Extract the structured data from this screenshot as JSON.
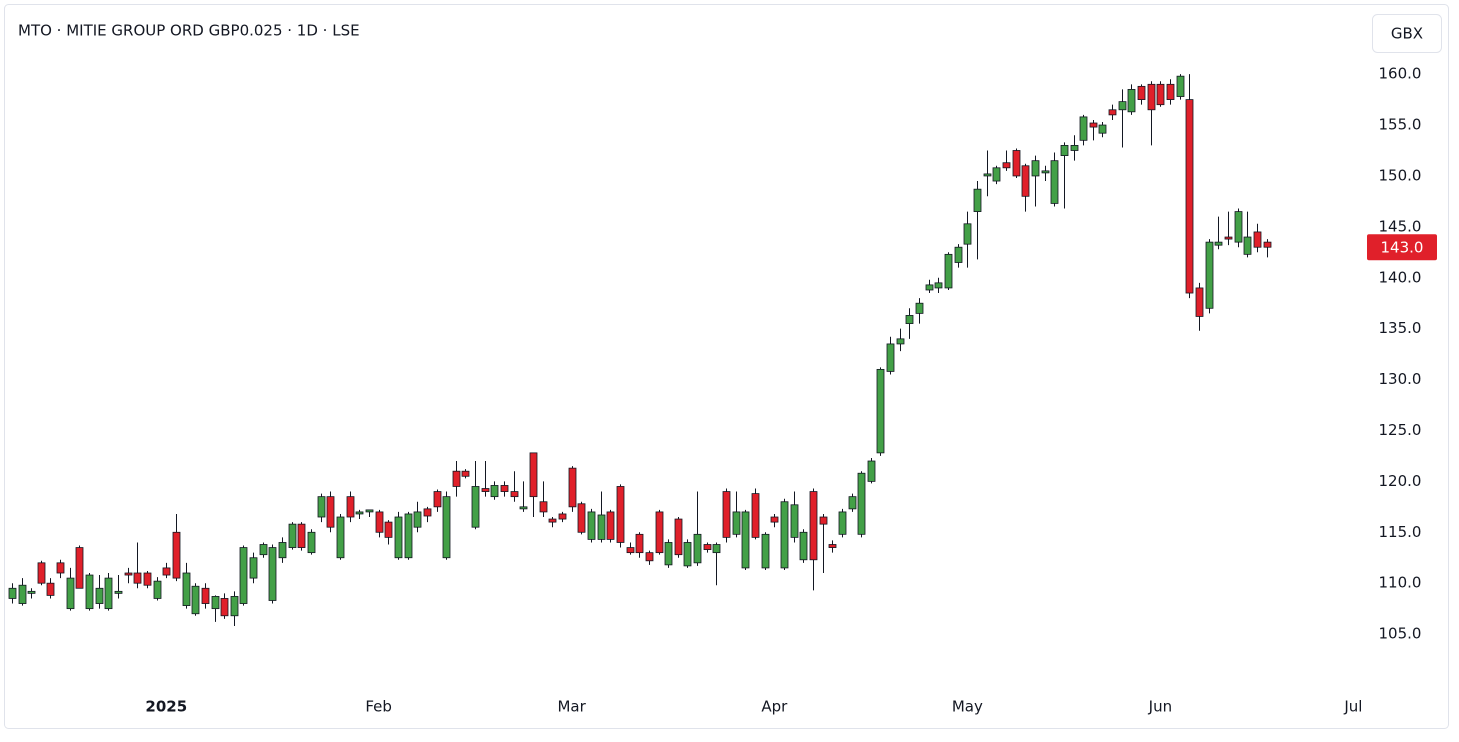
{
  "chart_data": {
    "type": "candlestick",
    "title": "MTO · MITIE GROUP ORD GBP0.025 · 1D · LSE",
    "currency": "GBX",
    "up_color": "#43a047",
    "down_color": "#e0202a",
    "wick_color": "#131722",
    "open": [
      108.5,
      108,
      109,
      112,
      110,
      112,
      107.5,
      113.5,
      107.5,
      108,
      107.5,
      109,
      111,
      111,
      111,
      108.5,
      111.5,
      115,
      107.8,
      107,
      109.5,
      107.5,
      108.5,
      106.8,
      108,
      110.5,
      112.8,
      108.3,
      112.5,
      113.5,
      115.8,
      113,
      116.5,
      118.5,
      112.5,
      118.5,
      116.8,
      117,
      117,
      116,
      112.5,
      112.5,
      115.5,
      117.3,
      119,
      112.5,
      121,
      121,
      115.5,
      119.3,
      118.5,
      119.6,
      119,
      117.3,
      122.8,
      118,
      116.3,
      116.8,
      121.3,
      117.8,
      114.3,
      114.3,
      117,
      119.5,
      113.5,
      114.8,
      113,
      117,
      111.8,
      116.3,
      111.7,
      112,
      113.8,
      113,
      119,
      114.8,
      111.5,
      118.8,
      111.5,
      116.5,
      111.5,
      114.5,
      112.3,
      119,
      116.5,
      113.8,
      114.8,
      117.3,
      114.8,
      120,
      122.8,
      130.8,
      133.5,
      135.5,
      136.5,
      138.8,
      139,
      139,
      141.5,
      143.3,
      146.5,
      150,
      149.5,
      151.3,
      152.5,
      151,
      150,
      150.3,
      147.3,
      152,
      152.5,
      153.5,
      155.2,
      154.2,
      156.5,
      156.5,
      156.3,
      158.8,
      159,
      159,
      159,
      157.8,
      157.5,
      139,
      137,
      143.2,
      144,
      143.5,
      142.3,
      144.5,
      143.5
    ],
    "high": [
      110,
      110.5,
      109.5,
      112.2,
      110.5,
      112.3,
      111.5,
      113.7,
      111,
      110.8,
      111,
      110.8,
      111.5,
      114,
      111.2,
      110.6,
      112,
      116.8,
      112,
      110,
      110,
      108.8,
      109,
      109.2,
      113.7,
      113,
      114,
      113.8,
      114.5,
      116,
      116,
      115.3,
      118.8,
      119,
      116.8,
      119,
      117.2,
      117.2,
      117.2,
      116.2,
      117,
      117,
      118,
      117.5,
      119.2,
      119,
      122,
      121.2,
      122,
      122,
      120,
      120,
      121,
      120,
      122.8,
      120,
      116.5,
      117,
      121.5,
      118,
      117.3,
      119,
      117.2,
      119.7,
      114,
      115,
      113.2,
      117.2,
      114.3,
      116.5,
      114.3,
      119,
      114,
      114,
      119.3,
      119,
      117.2,
      119.3,
      115,
      116.8,
      118.3,
      119,
      115.3,
      119.3,
      116.8,
      114.2,
      117.3,
      118.8,
      121,
      122.3,
      131.2,
      134.2,
      135,
      137,
      138,
      139.8,
      140,
      142.5,
      143.3,
      146.5,
      149.5,
      152.5,
      151,
      152.5,
      152.7,
      151.2,
      152,
      151,
      152.3,
      153.3,
      154,
      156,
      155.5,
      155.3,
      157,
      158.5,
      159,
      159,
      159.3,
      159.3,
      159.5,
      160,
      160,
      139.5,
      143.8,
      146,
      146.5,
      146.8,
      146.5,
      145.3,
      143.8
    ],
    "low": [
      108,
      107.8,
      108.5,
      109.8,
      108.5,
      110.5,
      107.3,
      109.5,
      107.3,
      107.5,
      107.3,
      108.5,
      110,
      109.5,
      109.5,
      108.3,
      110.5,
      110.2,
      107.5,
      106.8,
      107.5,
      106.2,
      106.5,
      105.8,
      107.8,
      110,
      112.5,
      108,
      112,
      113.3,
      113.2,
      112.8,
      116,
      115,
      112.3,
      116,
      116.3,
      116.5,
      114.5,
      113.8,
      112.3,
      112.3,
      115,
      116,
      117,
      112.3,
      118.5,
      120.3,
      115.3,
      118.5,
      118.2,
      118.5,
      118,
      117,
      116.5,
      116.5,
      115.5,
      116,
      117,
      114.8,
      114,
      114,
      114,
      113.5,
      112.8,
      112.5,
      111.8,
      112.8,
      111.5,
      112.5,
      111.5,
      111.7,
      113,
      109.8,
      114,
      114.5,
      111.3,
      114.3,
      111.3,
      115.5,
      111.3,
      114,
      112,
      109.3,
      111,
      113,
      114.5,
      117,
      114.5,
      119.8,
      122.5,
      130.5,
      132.8,
      134,
      135.5,
      138.5,
      138.5,
      138.8,
      141,
      141,
      141.8,
      148,
      149.2,
      150.5,
      149.8,
      146.5,
      147,
      149.5,
      147,
      146.8,
      151.5,
      153,
      153.5,
      153.8,
      155.5,
      152.8,
      156,
      157,
      153,
      156.8,
      157,
      157.5,
      138,
      134.8,
      136.5,
      142.8,
      143.2,
      143,
      142,
      142.5,
      142
    ],
    "close": [
      109.5,
      109.8,
      109.2,
      110,
      108.8,
      111,
      110.5,
      109.5,
      110.8,
      109.5,
      110.5,
      109.2,
      110.8,
      110,
      109.8,
      110.2,
      110.8,
      110.5,
      111,
      109.7,
      108,
      108.7,
      106.8,
      108.7,
      113.5,
      112.5,
      113.8,
      113.5,
      114,
      115.8,
      113.5,
      115,
      118.5,
      115.5,
      116.5,
      116.5,
      117,
      117.2,
      115,
      114.5,
      116.5,
      116.8,
      117,
      116.6,
      117.5,
      118.5,
      119.5,
      120.5,
      119.5,
      119,
      119.6,
      119,
      118.5,
      117.5,
      118.5,
      117,
      116,
      116.3,
      117.5,
      115,
      117,
      116.7,
      114.3,
      114,
      113,
      113,
      112.2,
      113,
      114,
      112.8,
      114,
      114.8,
      113.3,
      113.8,
      114.5,
      117,
      117,
      114.5,
      114.8,
      116,
      118,
      117.7,
      115,
      112.3,
      115.8,
      113.5,
      117,
      118.5,
      120.8,
      122,
      131,
      133.5,
      134,
      136.3,
      137.5,
      139.3,
      139.5,
      142.3,
      143,
      145.3,
      148.7,
      150.2,
      150.8,
      150.8,
      150,
      148,
      151.5,
      150.5,
      151.5,
      153,
      153,
      155.8,
      154.8,
      155,
      156,
      157.3,
      158.5,
      157.5,
      156.5,
      157,
      157.5,
      159.8,
      138.5,
      136.2,
      143.5,
      143.5,
      143.8,
      146.5,
      144,
      143,
      143
    ],
    "last_price": {
      "value": 143.0,
      "label": "143.0"
    },
    "xlim": [
      -0.4,
      140.2
    ],
    "xticks": [
      {
        "value": 16,
        "label": "2025"
      },
      {
        "value": 38,
        "label": "Feb"
      },
      {
        "value": 58,
        "label": "Mar"
      },
      {
        "value": 79,
        "label": "Apr"
      },
      {
        "value": 99,
        "label": "May"
      },
      {
        "value": 119,
        "label": "Jun"
      },
      {
        "value": 139,
        "label": "Jul"
      }
    ],
    "ylim": [
      100,
      166.3
    ],
    "yticks": [
      {
        "value": 105,
        "label": "105.0"
      },
      {
        "value": 110,
        "label": "110.0"
      },
      {
        "value": 115,
        "label": "115.0"
      },
      {
        "value": 120,
        "label": "120.0"
      },
      {
        "value": 125,
        "label": "125.0"
      },
      {
        "value": 130,
        "label": "130.0"
      },
      {
        "value": 135,
        "label": "135.0"
      },
      {
        "value": 140,
        "label": "140.0"
      },
      {
        "value": 145,
        "label": "145.0"
      },
      {
        "value": 150,
        "label": "150.0"
      },
      {
        "value": 155,
        "label": "155.0"
      },
      {
        "value": 160,
        "label": "160.0"
      }
    ],
    "grid": false
  }
}
